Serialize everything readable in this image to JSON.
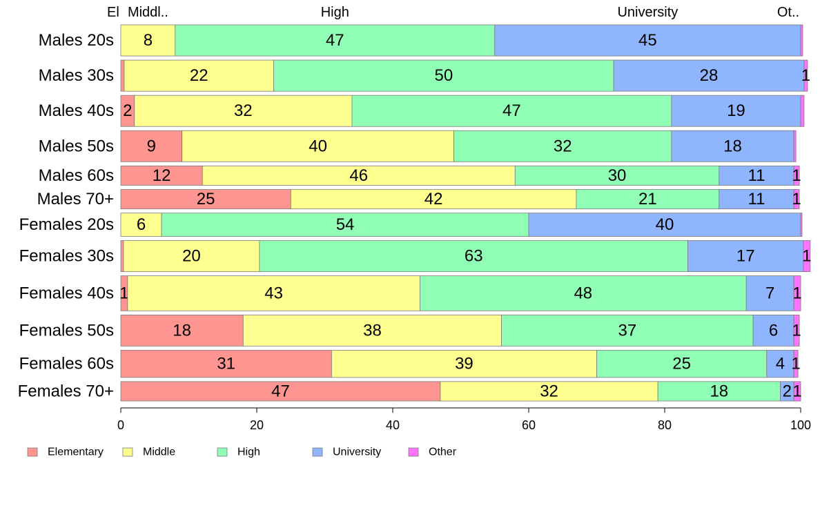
{
  "chart_data": {
    "type": "bar",
    "orientation": "horizontal",
    "stacked": true,
    "categories": [
      "Males 20s",
      "Males 30s",
      "Males 40s",
      "Males 50s",
      "Males 60s",
      "Males 70+",
      "Females 20s",
      "Females 30s",
      "Females 40s",
      "Females 50s",
      "Females 60s",
      "Females 70+"
    ],
    "series": [
      {
        "name": "Elementary",
        "color": "#ff9590",
        "values": [
          0,
          0.5,
          2,
          9,
          12,
          25,
          0,
          0.4,
          1,
          18,
          31,
          47
        ]
      },
      {
        "name": "Middle",
        "color": "#ffff90",
        "values": [
          8,
          22,
          32,
          40,
          46,
          42,
          6,
          20,
          43,
          38,
          39,
          32
        ]
      },
      {
        "name": "High",
        "color": "#90ffb5",
        "values": [
          47,
          50,
          47,
          32,
          30,
          21,
          54,
          63,
          48,
          37,
          25,
          18
        ]
      },
      {
        "name": "University",
        "color": "#90b5ff",
        "values": [
          45,
          28,
          19,
          18,
          11,
          11,
          40,
          17,
          7,
          6,
          4,
          2
        ]
      },
      {
        "name": "Other",
        "color": "#ff73ff",
        "values": [
          0.3,
          0.5,
          0.5,
          0.3,
          0.8,
          0.8,
          0.2,
          1,
          1,
          0.8,
          0.6,
          1
        ]
      }
    ],
    "segment_labels": [
      [
        "",
        "",
        "2",
        "9",
        "12",
        "25",
        "",
        "",
        "1",
        "18",
        "31",
        "47"
      ],
      [
        "8",
        "22",
        "32",
        "40",
        "46",
        "42",
        "6",
        "20",
        "43",
        "38",
        "39",
        "32"
      ],
      [
        "47",
        "50",
        "47",
        "32",
        "30",
        "21",
        "54",
        "63",
        "48",
        "37",
        "25",
        "18"
      ],
      [
        "45",
        "28",
        "19",
        "18",
        "11",
        "11",
        "40",
        "17",
        "7",
        "6",
        "4",
        "2"
      ],
      [
        "",
        "1",
        "",
        "",
        "1",
        "1",
        "",
        "1",
        "1",
        "1",
        "1",
        "1"
      ]
    ],
    "row_weights": [
      8,
      8,
      8,
      8,
      5,
      5,
      6,
      8,
      9,
      8,
      7,
      5
    ],
    "top_labels": [
      "El",
      "Middl..",
      "High",
      "University",
      "Ot.."
    ],
    "xlim": [
      0,
      100
    ],
    "xticks": [
      0,
      20,
      40,
      60,
      80,
      100
    ],
    "grid": false,
    "legend": {
      "position": "bottom-left",
      "items": [
        "Elementary",
        "Middle",
        "High",
        "University",
        "Other"
      ]
    }
  }
}
